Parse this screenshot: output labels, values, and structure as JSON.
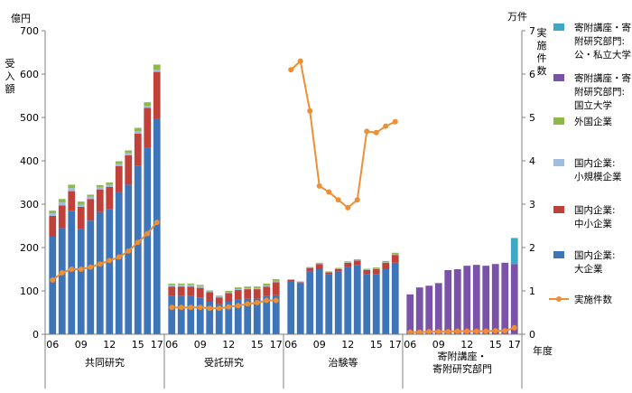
{
  "chart_data": {
    "type": "bar",
    "left_axis": {
      "unit": "億円",
      "title": "受入額",
      "range": [
        0,
        700
      ],
      "ticks": [
        "0",
        "100",
        "200",
        "300",
        "400",
        "500",
        "600",
        "700"
      ]
    },
    "right_axis": {
      "unit": "万件",
      "title": "実施件数",
      "range": [
        0,
        7
      ],
      "ticks": [
        "0",
        "1",
        "2",
        "3",
        "4",
        "5",
        "6",
        "7"
      ]
    },
    "x_unit": "年度",
    "year_tick_labels": [
      "06",
      "09",
      "12",
      "15",
      "17"
    ],
    "years": [
      "06",
      "07",
      "08",
      "09",
      "10",
      "11",
      "12",
      "13",
      "14",
      "15",
      "16",
      "17"
    ],
    "stack_order": [
      "large",
      "sme",
      "small",
      "foreign",
      "national",
      "public_private"
    ],
    "series": [
      {
        "key": "public_private",
        "name": "寄附講座・寄附研究部門:公・私立大学",
        "color": "#3fa9c5"
      },
      {
        "key": "national",
        "name": "寄附講座・寄附研究部門:国立大学",
        "color": "#7a52a8"
      },
      {
        "key": "foreign",
        "name": "外国企業",
        "color": "#8db84a"
      },
      {
        "key": "small",
        "name": "国内企業:小規模企業",
        "color": "#9fbde0"
      },
      {
        "key": "sme",
        "name": "国内企業:中小企業",
        "color": "#c0403a"
      },
      {
        "key": "large",
        "name": "国内企業:大企業",
        "color": "#3e74b8"
      },
      {
        "key": "count",
        "name": "実施件数",
        "color": "#ee8f36",
        "type": "line"
      }
    ],
    "groups": [
      {
        "label": "共同研究",
        "large": [
          225,
          245,
          285,
          242,
          262,
          282,
          288,
          328,
          345,
          388,
          430,
          497
        ],
        "sme": [
          48,
          52,
          45,
          52,
          50,
          52,
          52,
          60,
          68,
          75,
          92,
          108
        ],
        "small": [
          6,
          7,
          7,
          5,
          5,
          5,
          5,
          5,
          5,
          5,
          5,
          5
        ],
        "foreign": [
          6,
          8,
          8,
          7,
          5,
          5,
          5,
          6,
          6,
          8,
          8,
          12
        ],
        "count": [
          1.25,
          1.42,
          1.5,
          1.5,
          1.55,
          1.62,
          1.7,
          1.78,
          1.92,
          2.12,
          2.32,
          2.58
        ]
      },
      {
        "label": "受託研究",
        "large": [
          88,
          88,
          88,
          85,
          75,
          70,
          75,
          80,
          82,
          82,
          88,
          90
        ],
        "sme": [
          22,
          22,
          22,
          22,
          22,
          15,
          20,
          22,
          22,
          22,
          22,
          30
        ],
        "small": [
          4,
          4,
          4,
          4,
          2,
          2,
          2,
          2,
          2,
          2,
          2,
          2
        ],
        "foreign": [
          3,
          3,
          3,
          3,
          2,
          2,
          3,
          4,
          4,
          4,
          5,
          5
        ],
        "count": [
          0.62,
          0.62,
          0.62,
          0.62,
          0.6,
          0.6,
          0.63,
          0.66,
          0.7,
          0.73,
          0.78,
          0.78
        ]
      },
      {
        "label": "治験等",
        "large": [
          122,
          118,
          145,
          150,
          138,
          145,
          155,
          160,
          138,
          138,
          150,
          165
        ],
        "sme": [
          3,
          2,
          8,
          12,
          5,
          5,
          10,
          10,
          10,
          12,
          15,
          18
        ],
        "small": [
          1,
          1,
          1,
          1,
          1,
          1,
          1,
          1,
          1,
          1,
          1,
          1
        ],
        "foreign": [
          1,
          1,
          1,
          2,
          1,
          2,
          2,
          2,
          2,
          3,
          3,
          4
        ],
        "count": [
          6.1,
          6.3,
          5.15,
          3.42,
          3.28,
          3.1,
          2.92,
          3.1,
          4.68,
          4.65,
          4.8,
          4.9
        ]
      },
      {
        "label": "寄附講座・寄附研究部門",
        "national": [
          92,
          108,
          112,
          118,
          148,
          150,
          158,
          160,
          158,
          162,
          165,
          162
        ],
        "public_private": [
          0,
          0,
          0,
          0,
          0,
          0,
          0,
          0,
          0,
          0,
          0,
          60
        ],
        "count": [
          0.05,
          0.05,
          0.06,
          0.06,
          0.06,
          0.07,
          0.07,
          0.07,
          0.07,
          0.08,
          0.08,
          0.15
        ]
      }
    ]
  }
}
